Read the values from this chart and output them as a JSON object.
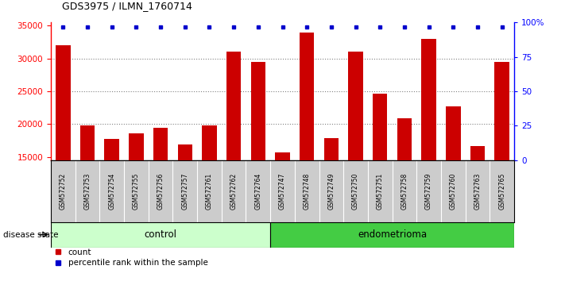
{
  "title": "GDS3975 / ILMN_1760714",
  "samples": [
    "GSM572752",
    "GSM572753",
    "GSM572754",
    "GSM572755",
    "GSM572756",
    "GSM572757",
    "GSM572761",
    "GSM572762",
    "GSM572764",
    "GSM572747",
    "GSM572748",
    "GSM572749",
    "GSM572750",
    "GSM572751",
    "GSM572758",
    "GSM572759",
    "GSM572760",
    "GSM572763",
    "GSM572765"
  ],
  "counts": [
    32000,
    19800,
    17700,
    18600,
    19400,
    16900,
    19800,
    31000,
    29500,
    15700,
    34000,
    17900,
    31000,
    24600,
    20900,
    33000,
    22700,
    16700,
    29500
  ],
  "percentile_ranks": [
    97,
    97,
    97,
    97,
    97,
    97,
    97,
    97,
    97,
    97,
    97,
    97,
    97,
    97,
    97,
    97,
    97,
    97,
    97
  ],
  "n_control": 9,
  "ylim_left": [
    14500,
    35500
  ],
  "ylim_right": [
    0,
    100
  ],
  "yticks_left": [
    15000,
    20000,
    25000,
    30000,
    35000
  ],
  "yticks_right": [
    0,
    25,
    50,
    75,
    100
  ],
  "ytick_labels_right": [
    "0",
    "25",
    "50",
    "75",
    "100%"
  ],
  "bar_color": "#cc0000",
  "dot_color": "#0000cc",
  "control_color": "#ccffcc",
  "endometrioma_color": "#44cc44",
  "tick_bg_color": "#cccccc",
  "label_count": "count",
  "label_percentile": "percentile rank within the sample",
  "disease_state_label": "disease state",
  "control_label": "control",
  "endometrioma_label": "endometrioma"
}
